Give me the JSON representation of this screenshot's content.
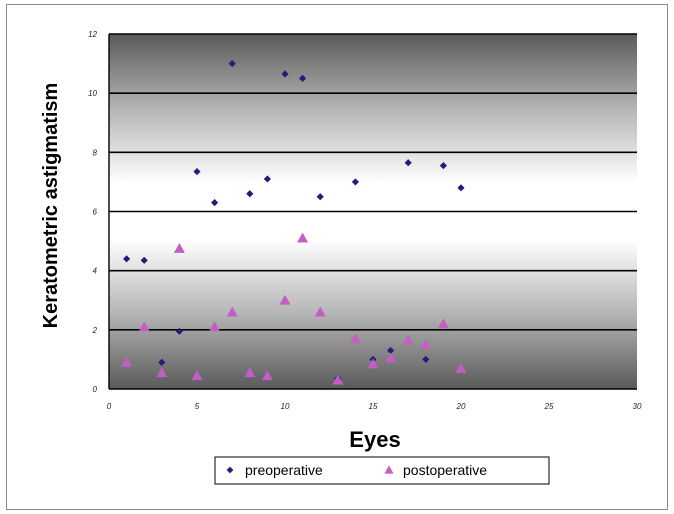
{
  "chart_data": {
    "type": "scatter",
    "title": "",
    "xlabel": "Eyes",
    "ylabel": "Keratometric astigmatism",
    "xlim": [
      0,
      30
    ],
    "ylim": [
      0,
      12
    ],
    "x_ticks": [
      "0",
      "5",
      "10",
      "15",
      "20",
      "25",
      "30"
    ],
    "y_ticks": [
      "0",
      "2",
      "4",
      "6",
      "8",
      "10",
      "12"
    ],
    "grid": "horizontal",
    "background": "vertical gradient, dark gray at top and bottom, white band in middle",
    "legend_position": "bottom-center",
    "series": [
      {
        "name": "preoperative",
        "marker": "diamond",
        "color": "#1f1f7a",
        "points": [
          [
            1,
            4.4
          ],
          [
            2,
            4.35
          ],
          [
            3,
            0.9
          ],
          [
            4,
            1.95
          ],
          [
            5,
            7.35
          ],
          [
            6,
            6.3
          ],
          [
            7,
            11.0
          ],
          [
            8,
            6.6
          ],
          [
            9,
            7.1
          ],
          [
            10,
            10.65
          ],
          [
            11,
            10.5
          ],
          [
            12,
            6.5
          ],
          [
            13,
            0.35
          ],
          [
            14,
            7.0
          ],
          [
            15,
            1.0
          ],
          [
            16,
            1.3
          ],
          [
            17,
            7.65
          ],
          [
            18,
            1.0
          ],
          [
            19,
            7.55
          ],
          [
            20,
            6.8
          ]
        ]
      },
      {
        "name": "postoperative",
        "marker": "triangle",
        "color": "#c45ec4",
        "points": [
          [
            1,
            0.9
          ],
          [
            2,
            2.1
          ],
          [
            3,
            0.55
          ],
          [
            4,
            4.75
          ],
          [
            5,
            0.45
          ],
          [
            6,
            2.1
          ],
          [
            7,
            2.6
          ],
          [
            8,
            0.55
          ],
          [
            9,
            0.45
          ],
          [
            10,
            3.0
          ],
          [
            11,
            5.1
          ],
          [
            12,
            2.6
          ],
          [
            13,
            0.3
          ],
          [
            14,
            1.7
          ],
          [
            15,
            0.85
          ],
          [
            16,
            1.05
          ],
          [
            17,
            1.65
          ],
          [
            18,
            1.5
          ],
          [
            19,
            2.2
          ],
          [
            20,
            0.7
          ]
        ]
      }
    ]
  }
}
